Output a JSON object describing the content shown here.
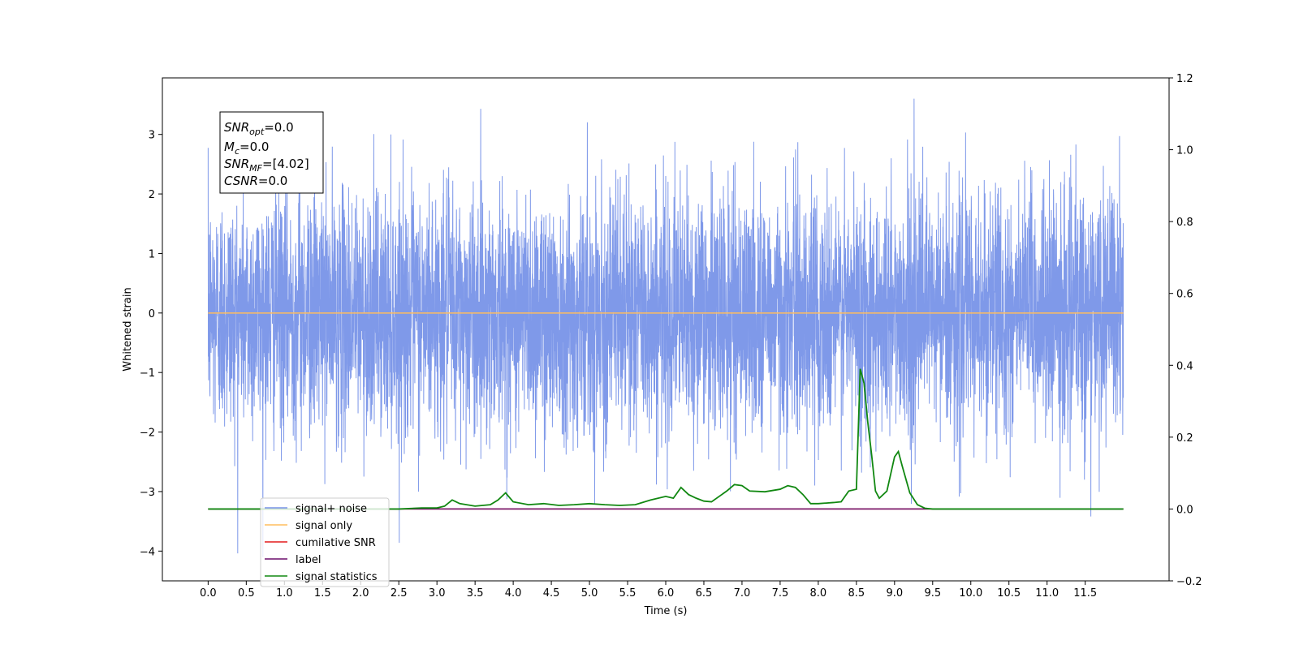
{
  "chart_data": {
    "type": "line",
    "xlabel": "Time (s)",
    "ylabel": "Whitened strain",
    "xlim": [
      -0.6,
      12.6
    ],
    "ylim": [
      -4.5,
      3.95
    ],
    "ylim_right": [
      -0.2,
      1.2
    ],
    "x_ticks": [
      "0.0",
      "0.5",
      "1.0",
      "1.5",
      "2.0",
      "2.5",
      "3.0",
      "3.5",
      "4.0",
      "4.5",
      "5.0",
      "5.5",
      "6.0",
      "6.5",
      "7.0",
      "7.5",
      "8.0",
      "8.5",
      "9.0",
      "9.5",
      "10.0",
      "10.5",
      "11.0",
      "11.5"
    ],
    "y_ticks": [
      "3",
      "2",
      "1",
      "0",
      "−1",
      "−2",
      "−3",
      "−4"
    ],
    "y_ticks_right": [
      "1.2",
      "1.0",
      "0.8",
      "0.6",
      "0.4",
      "0.2",
      "0.0",
      "−0.2"
    ],
    "noise": {
      "x_range": [
        0.0,
        12.0
      ],
      "typical_envelope": [
        -2.2,
        2.2
      ],
      "max": 3.6,
      "min": -4.1
    },
    "series": [
      {
        "name": "signal+ noise",
        "color": "#7894e8",
        "axis": "left"
      },
      {
        "name": "signal only",
        "color": "#ffbd5e",
        "axis": "left",
        "x": [
          0.0,
          12.0
        ],
        "y": [
          0.0,
          0.0
        ]
      },
      {
        "name": "cumilative SNR",
        "color": "#e31a1c",
        "axis": "right",
        "x": [
          0.0,
          12.0
        ],
        "y": [
          0.0,
          0.0
        ]
      },
      {
        "name": "label",
        "color": "#6b0f6b",
        "axis": "right",
        "x": [
          0.0,
          12.0
        ],
        "y": [
          0.0,
          0.0
        ]
      },
      {
        "name": "signal statistics",
        "color": "#118811",
        "axis": "right",
        "x": [
          0.0,
          0.5,
          1.0,
          1.5,
          2.0,
          2.5,
          2.8,
          3.0,
          3.1,
          3.2,
          3.3,
          3.5,
          3.7,
          3.8,
          3.9,
          4.0,
          4.2,
          4.4,
          4.6,
          4.8,
          5.0,
          5.2,
          5.4,
          5.6,
          5.8,
          6.0,
          6.1,
          6.2,
          6.3,
          6.4,
          6.5,
          6.6,
          6.8,
          6.9,
          7.0,
          7.1,
          7.3,
          7.5,
          7.6,
          7.7,
          7.8,
          7.9,
          8.0,
          8.2,
          8.3,
          8.4,
          8.5,
          8.55,
          8.6,
          8.65,
          8.7,
          8.75,
          8.8,
          8.9,
          9.0,
          9.05,
          9.1,
          9.2,
          9.3,
          9.4,
          9.5,
          10.0,
          11.0,
          12.0
        ],
        "y": [
          0.0,
          0.0,
          0.0,
          0.0,
          0.0,
          0.0,
          0.003,
          0.003,
          0.008,
          0.025,
          0.015,
          0.008,
          0.012,
          0.025,
          0.045,
          0.02,
          0.012,
          0.015,
          0.01,
          0.012,
          0.015,
          0.012,
          0.01,
          0.012,
          0.025,
          0.035,
          0.03,
          0.06,
          0.04,
          0.03,
          0.022,
          0.02,
          0.05,
          0.068,
          0.065,
          0.05,
          0.048,
          0.055,
          0.065,
          0.06,
          0.04,
          0.015,
          0.015,
          0.018,
          0.02,
          0.05,
          0.055,
          0.39,
          0.35,
          0.24,
          0.15,
          0.05,
          0.03,
          0.05,
          0.145,
          0.16,
          0.12,
          0.045,
          0.012,
          0.002,
          0.0,
          0.0,
          0.0,
          0.0
        ]
      }
    ],
    "legend": "lower-left",
    "annotation": {
      "snr_opt": {
        "base": "SNR",
        "sub": "opt",
        "value": "=0.0"
      },
      "mc": {
        "base": "M",
        "sub": "c",
        "value": "=0.0"
      },
      "snr_mf": {
        "base": "SNR",
        "sub": "MF",
        "value": "=[4.02]"
      },
      "csnr": {
        "base": "CSNR",
        "value": "=0.0"
      }
    }
  }
}
